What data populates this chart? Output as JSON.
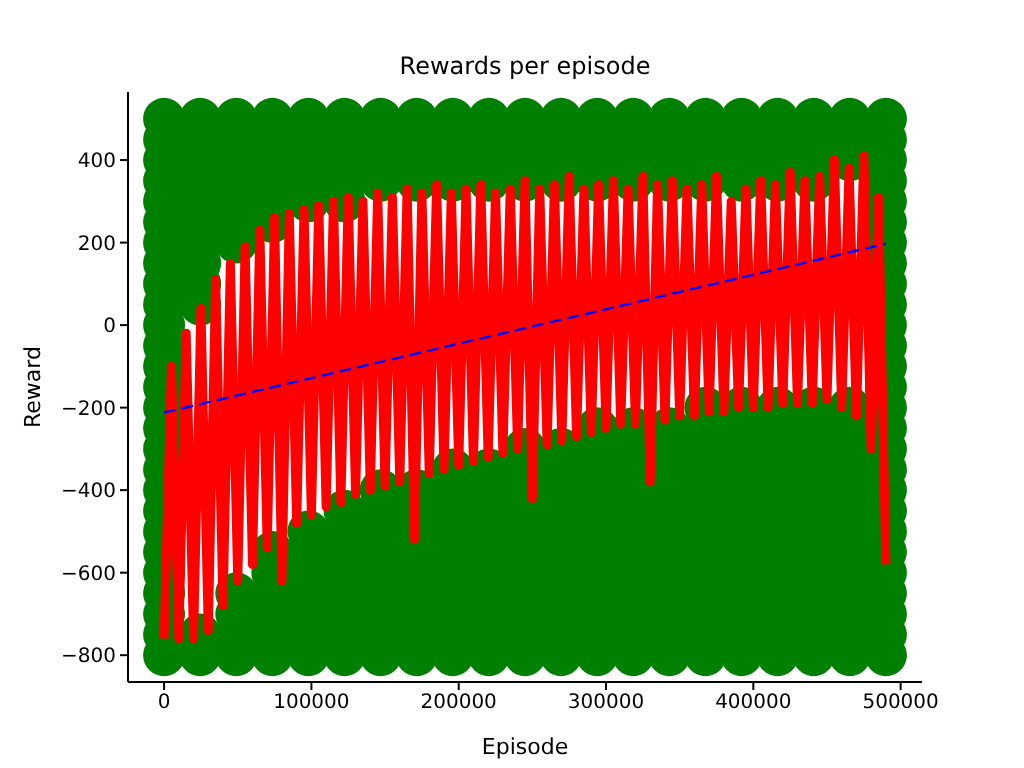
{
  "chart_data": {
    "type": "scatter",
    "title": "Rewards per episode",
    "xlabel": "Episode",
    "ylabel": "Reward",
    "xlim": [
      -24500,
      514500
    ],
    "xticks": [
      0,
      100000,
      200000,
      300000,
      400000,
      500000
    ],
    "ylim": [
      -865,
      565
    ],
    "yticks": [
      -800,
      -600,
      -400,
      -200,
      0,
      200,
      400
    ],
    "grid": false,
    "legend": false,
    "series": [
      {
        "type": "scatter",
        "color": "#008000",
        "marker": "circle",
        "x": [
          0,
          0,
          0,
          0,
          0,
          0,
          0,
          0,
          0,
          0,
          0,
          0,
          0,
          0,
          0,
          0,
          0,
          0,
          0,
          0,
          0,
          0,
          0,
          0,
          0,
          0,
          0,
          24500,
          24500,
          24500,
          24500,
          24500,
          24500,
          24500,
          24500,
          24500,
          24500,
          24500,
          24500,
          49000,
          49000,
          49000,
          49000,
          49000,
          49000,
          49000,
          49000,
          49000,
          49000,
          49000,
          73500,
          73500,
          73500,
          73500,
          73500,
          73500,
          73500,
          73500,
          73500,
          73500,
          73500,
          73500,
          98000,
          98000,
          98000,
          98000,
          98000,
          98000,
          98000,
          98000,
          98000,
          98000,
          98000,
          98000,
          122500,
          122500,
          122500,
          122500,
          122500,
          122500,
          122500,
          122500,
          122500,
          122500,
          122500,
          122500,
          122500,
          147000,
          147000,
          147000,
          147000,
          147000,
          147000,
          147000,
          147000,
          147000,
          147000,
          147000,
          147000,
          147000,
          171500,
          171500,
          171500,
          171500,
          171500,
          171500,
          171500,
          171500,
          171500,
          171500,
          171500,
          171500,
          171500,
          196000,
          196000,
          196000,
          196000,
          196000,
          196000,
          196000,
          196000,
          196000,
          196000,
          196000,
          196000,
          196000,
          196000,
          220500,
          220500,
          220500,
          220500,
          220500,
          220500,
          220500,
          220500,
          220500,
          220500,
          220500,
          220500,
          220500,
          220500,
          245000,
          245000,
          245000,
          245000,
          245000,
          245000,
          245000,
          245000,
          245000,
          245000,
          245000,
          245000,
          245000,
          245000,
          245000,
          269500,
          269500,
          269500,
          269500,
          269500,
          269500,
          269500,
          269500,
          269500,
          269500,
          269500,
          269500,
          269500,
          269500,
          269500,
          294000,
          294000,
          294000,
          294000,
          294000,
          294000,
          294000,
          294000,
          294000,
          294000,
          294000,
          294000,
          294000,
          294000,
          294000,
          294000,
          318500,
          318500,
          318500,
          318500,
          318500,
          318500,
          318500,
          318500,
          318500,
          318500,
          318500,
          318500,
          318500,
          318500,
          318500,
          318500,
          343000,
          343000,
          343000,
          343000,
          343000,
          343000,
          343000,
          343000,
          343000,
          343000,
          343000,
          343000,
          343000,
          343000,
          343000,
          343000,
          367500,
          367500,
          367500,
          367500,
          367500,
          367500,
          367500,
          367500,
          367500,
          367500,
          367500,
          367500,
          367500,
          367500,
          367500,
          367500,
          367500,
          392000,
          392000,
          392000,
          392000,
          392000,
          392000,
          392000,
          392000,
          392000,
          392000,
          392000,
          392000,
          392000,
          392000,
          392000,
          392000,
          392000,
          416500,
          416500,
          416500,
          416500,
          416500,
          416500,
          416500,
          416500,
          416500,
          416500,
          416500,
          416500,
          416500,
          416500,
          416500,
          416500,
          416500,
          441000,
          441000,
          441000,
          441000,
          441000,
          441000,
          441000,
          441000,
          441000,
          441000,
          441000,
          441000,
          441000,
          441000,
          441000,
          441000,
          441000,
          465500,
          465500,
          465500,
          465500,
          465500,
          465500,
          465500,
          465500,
          465500,
          465500,
          465500,
          465500,
          465500,
          465500,
          465500,
          465500,
          490000,
          490000,
          490000,
          490000,
          490000,
          490000,
          490000,
          490000,
          490000,
          490000,
          490000,
          490000,
          490000,
          490000,
          490000,
          490000,
          490000,
          490000,
          490000,
          490000,
          490000,
          490000,
          490000,
          490000,
          490000,
          490000,
          490000
        ],
        "values": [
          -800,
          -750,
          -700,
          -650,
          -600,
          -550,
          -500,
          -450,
          -400,
          -350,
          -300,
          -250,
          -200,
          -150,
          -100,
          -50,
          0,
          50,
          100,
          150,
          200,
          250,
          300,
          350,
          400,
          450,
          500,
          -800,
          -750,
          50,
          100,
          150,
          200,
          250,
          300,
          350,
          400,
          450,
          500,
          -800,
          -750,
          -700,
          -650,
          200,
          250,
          300,
          350,
          400,
          450,
          500,
          -800,
          -750,
          -700,
          -650,
          -600,
          -550,
          250,
          300,
          350,
          400,
          450,
          500,
          -800,
          -750,
          -700,
          -650,
          -600,
          -550,
          -500,
          300,
          350,
          400,
          450,
          500,
          -800,
          -750,
          -700,
          -650,
          -600,
          -550,
          -500,
          -450,
          300,
          350,
          400,
          450,
          500,
          -800,
          -750,
          -700,
          -650,
          -600,
          -550,
          -500,
          -450,
          -400,
          350,
          400,
          450,
          500,
          -800,
          -750,
          -700,
          -650,
          -600,
          -550,
          -500,
          -450,
          -400,
          350,
          400,
          450,
          500,
          -800,
          -750,
          -700,
          -650,
          -600,
          -550,
          -500,
          -450,
          -400,
          -350,
          350,
          400,
          450,
          500,
          -800,
          -750,
          -700,
          -650,
          -600,
          -550,
          -500,
          -450,
          -400,
          -350,
          350,
          400,
          450,
          500,
          -800,
          -750,
          -700,
          -650,
          -600,
          -550,
          -500,
          -450,
          -400,
          -350,
          -300,
          350,
          400,
          450,
          500,
          -800,
          -750,
          -700,
          -650,
          -600,
          -550,
          -500,
          -450,
          -400,
          -350,
          -300,
          350,
          400,
          450,
          500,
          -800,
          -750,
          -700,
          -650,
          -600,
          -550,
          -500,
          -450,
          -400,
          -350,
          -300,
          -250,
          350,
          400,
          450,
          500,
          -800,
          -750,
          -700,
          -650,
          -600,
          -550,
          -500,
          -450,
          -400,
          -350,
          -300,
          -250,
          350,
          400,
          450,
          500,
          -800,
          -750,
          -700,
          -650,
          -600,
          -550,
          -500,
          -450,
          -400,
          -350,
          -300,
          -250,
          350,
          400,
          450,
          500,
          -800,
          -750,
          -700,
          -650,
          -600,
          -550,
          -500,
          -450,
          -400,
          -350,
          -300,
          -250,
          -200,
          350,
          400,
          450,
          500,
          -800,
          -750,
          -700,
          -650,
          -600,
          -550,
          -500,
          -450,
          -400,
          -350,
          -300,
          -250,
          -200,
          350,
          400,
          450,
          500,
          -800,
          -750,
          -700,
          -650,
          -600,
          -550,
          -500,
          -450,
          -400,
          -350,
          -300,
          -250,
          -200,
          350,
          400,
          450,
          500,
          -800,
          -750,
          -700,
          -650,
          -600,
          -550,
          -500,
          -450,
          -400,
          -350,
          -300,
          -250,
          -200,
          350,
          400,
          450,
          500,
          -800,
          -750,
          -700,
          -650,
          -600,
          -550,
          -500,
          -450,
          -400,
          -350,
          -300,
          -250,
          -200,
          400,
          450,
          500,
          -800,
          -750,
          -700,
          -650,
          -600,
          -550,
          -500,
          -450,
          -400,
          -350,
          -300,
          -250,
          -200,
          -150,
          -100,
          -50,
          0,
          50,
          100,
          150,
          200,
          250,
          300,
          350,
          400,
          450,
          500
        ]
      },
      {
        "type": "line",
        "color": "#ff0000",
        "marker": "none",
        "line_style": "solid",
        "x": [
          0,
          5000,
          10000,
          15000,
          20000,
          25000,
          30000,
          35000,
          40000,
          45000,
          50000,
          55000,
          60000,
          65000,
          70000,
          75000,
          80000,
          85000,
          90000,
          95000,
          100000,
          105000,
          110000,
          115000,
          120000,
          125000,
          130000,
          135000,
          140000,
          145000,
          150000,
          155000,
          160000,
          165000,
          170000,
          175000,
          180000,
          185000,
          190000,
          195000,
          200000,
          205000,
          210000,
          215000,
          220000,
          225000,
          230000,
          235000,
          240000,
          245000,
          250000,
          255000,
          260000,
          265000,
          270000,
          275000,
          280000,
          285000,
          290000,
          295000,
          300000,
          305000,
          310000,
          315000,
          320000,
          325000,
          330000,
          335000,
          340000,
          345000,
          350000,
          355000,
          360000,
          365000,
          370000,
          375000,
          380000,
          385000,
          390000,
          395000,
          400000,
          405000,
          410000,
          415000,
          420000,
          425000,
          430000,
          435000,
          440000,
          445000,
          450000,
          455000,
          460000,
          465000,
          470000,
          475000,
          480000,
          485000,
          490000
        ],
        "values": [
          -760,
          -100,
          -760,
          -20,
          -760,
          40,
          -740,
          110,
          -680,
          150,
          -620,
          190,
          -580,
          230,
          -540,
          260,
          -620,
          270,
          -480,
          280,
          -460,
          290,
          -440,
          300,
          -430,
          310,
          -410,
          300,
          -400,
          320,
          -390,
          310,
          -380,
          330,
          -520,
          320,
          -360,
          340,
          -350,
          320,
          -340,
          330,
          -330,
          340,
          -320,
          320,
          -310,
          330,
          -300,
          350,
          -420,
          330,
          -290,
          340,
          -280,
          360,
          -270,
          330,
          -260,
          340,
          -250,
          350,
          -240,
          330,
          -240,
          360,
          -380,
          340,
          -230,
          350,
          -220,
          330,
          -220,
          340,
          -210,
          360,
          -210,
          300,
          -200,
          330,
          -200,
          350,
          -200,
          340,
          -190,
          370,
          -190,
          350,
          -190,
          360,
          -180,
          400,
          -200,
          380,
          -220,
          410,
          -300,
          310,
          -580
        ]
      },
      {
        "type": "line",
        "color": "#0000ff",
        "marker": "none",
        "line_style": "dashed",
        "x": [
          0,
          490000
        ],
        "values": [
          -212,
          197
        ]
      }
    ]
  }
}
